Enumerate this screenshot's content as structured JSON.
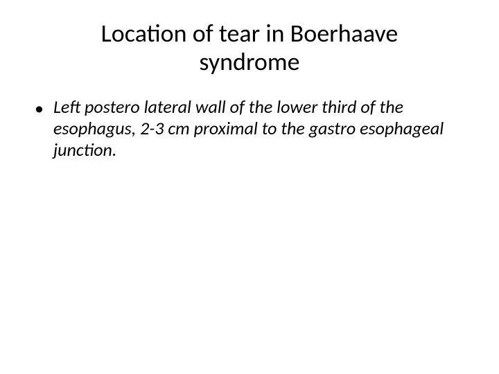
{
  "slide": {
    "title": "Location of tear in Boerhaave syndrome",
    "bullets": [
      {
        "marker": "•",
        "text": "Left postero lateral wall of the lower third of the esophagus, 2-3 cm proximal to the gastro esophageal junction."
      }
    ]
  },
  "style": {
    "background_color": "#ffffff",
    "text_color": "#000000",
    "title_fontsize": 36,
    "body_fontsize": 26,
    "font_family": "Calibri"
  }
}
